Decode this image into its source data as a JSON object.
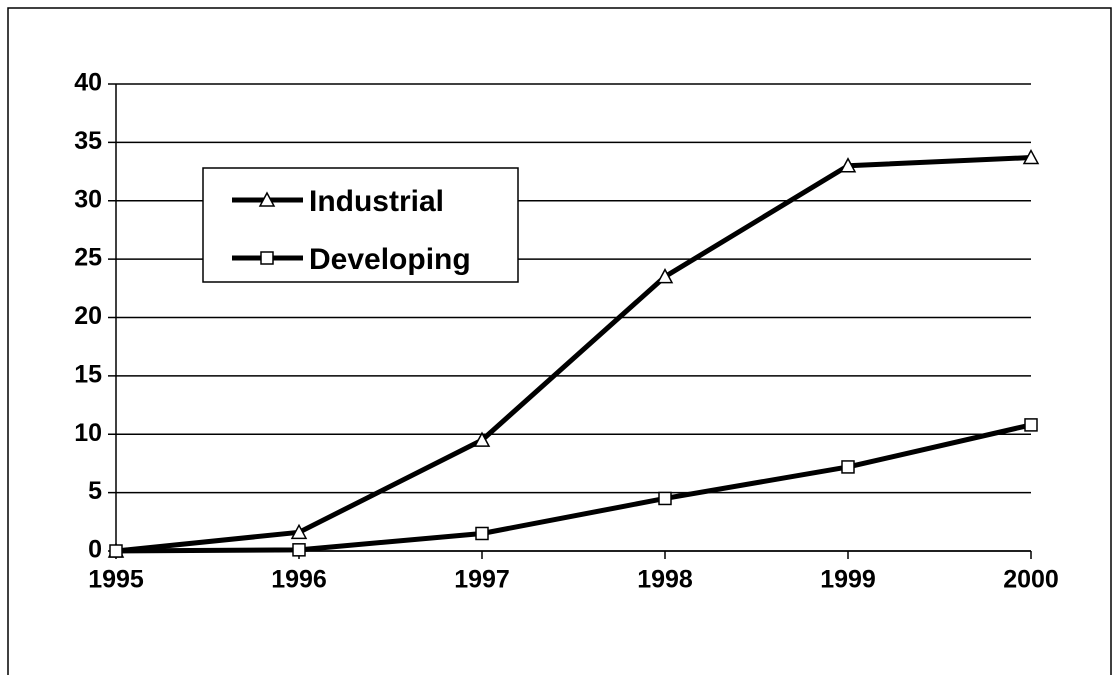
{
  "chart_data": {
    "type": "line",
    "x": [
      1995,
      1996,
      1997,
      1998,
      1999,
      2000
    ],
    "series": [
      {
        "name": "Industrial",
        "color": "#000000",
        "marker": "triangle",
        "values": [
          0,
          1.6,
          9.5,
          23.5,
          33,
          33.7
        ]
      },
      {
        "name": "Developing",
        "color": "#000000",
        "marker": "square",
        "values": [
          0,
          0.1,
          1.5,
          4.5,
          7.2,
          10.8
        ]
      }
    ],
    "xlim": [
      1995,
      2000
    ],
    "xticks": [
      1995,
      1996,
      1997,
      1998,
      1999,
      2000
    ],
    "ylim": [
      0,
      40
    ],
    "yticks": [
      0,
      5,
      10,
      15,
      20,
      25,
      30,
      35,
      40
    ],
    "grid": true,
    "legend": "upper left"
  }
}
